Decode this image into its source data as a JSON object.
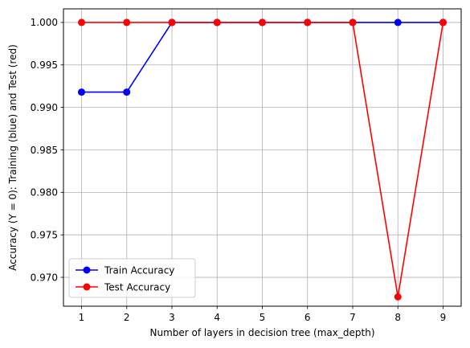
{
  "chart_data": {
    "type": "line",
    "title": "",
    "xlabel": "Number of layers in decision tree (max_depth)",
    "ylabel": "Accuracy (Y = 0): Training (blue) and Test (red)",
    "x": [
      1,
      2,
      3,
      4,
      5,
      6,
      7,
      8,
      9
    ],
    "xticks": [
      "1",
      "2",
      "3",
      "4",
      "5",
      "6",
      "7",
      "8",
      "9"
    ],
    "xlim": [
      0.6,
      9.4
    ],
    "ylim": [
      0.9666,
      1.0016
    ],
    "yticks": [
      "0.970",
      "0.975",
      "0.980",
      "0.985",
      "0.990",
      "0.995",
      "1.000"
    ],
    "yticks_values": [
      0.97,
      0.975,
      0.98,
      0.985,
      0.99,
      0.995,
      1.0
    ],
    "grid": true,
    "legend_position": "lower-left",
    "series": [
      {
        "name": "Train Accuracy",
        "color": "#0000ff",
        "values": [
          0.9918,
          0.9918,
          1.0,
          1.0,
          1.0,
          1.0,
          1.0,
          1.0,
          1.0
        ]
      },
      {
        "name": "Test Accuracy",
        "color": "#ff0000",
        "values": [
          1.0,
          1.0,
          1.0,
          1.0,
          1.0,
          1.0,
          1.0,
          0.9677,
          1.0
        ]
      }
    ]
  }
}
